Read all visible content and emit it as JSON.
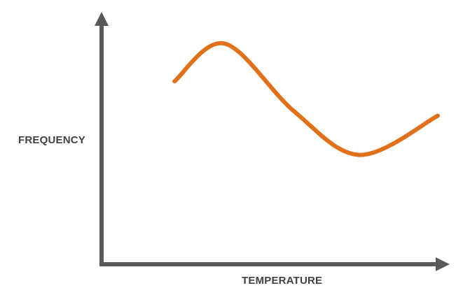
{
  "chart_data": {
    "type": "line",
    "title": "",
    "xlabel": "TEMPERATURE",
    "ylabel": "FREQUENCY",
    "xlim": [
      0,
      100
    ],
    "ylim": [
      0,
      100
    ],
    "axis_ticks": false,
    "grid": false,
    "legend": "none",
    "series": [
      {
        "color": "#E0701A",
        "points": [
          {
            "x": 12.0,
            "y": 84.0
          },
          {
            "x": 28.8,
            "y": 101.5
          },
          {
            "x": 52.0,
            "y": 70.0
          },
          {
            "x": 74.0,
            "y": 49.8
          },
          {
            "x": 100.0,
            "y": 68.0
          }
        ]
      }
    ]
  },
  "colors": {
    "axis": "#595959",
    "label": "#404040"
  }
}
